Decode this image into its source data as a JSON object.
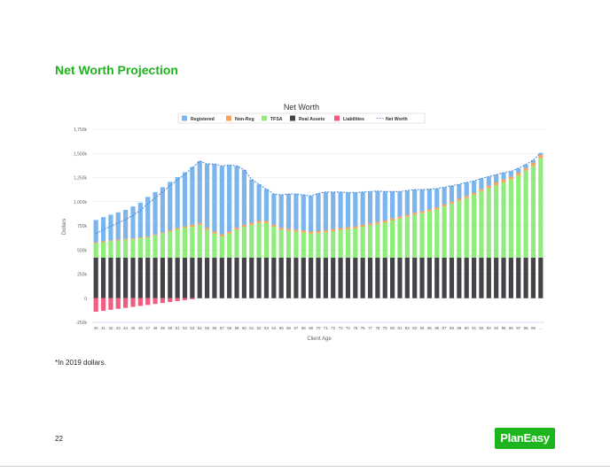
{
  "page": {
    "title": "Net Worth Projection",
    "footnote": "*In 2019 dollars.",
    "page_number": "22",
    "logo_text": "PlanEasy",
    "accent_color": "#1db51d"
  },
  "chart_data": {
    "type": "bar",
    "stacked": true,
    "title": "Net Worth",
    "xlabel": "Client Age",
    "ylabel": "Dollars",
    "ylim": [
      -250000,
      1750000
    ],
    "yticks": [
      -250000,
      0,
      250000,
      500000,
      750000,
      1000000,
      1250000,
      1500000,
      1750000
    ],
    "ytick_labels": [
      "-250k",
      "0",
      "250k",
      "500k",
      "750k",
      "1,000k",
      "1,250k",
      "1,500k",
      "1,750k"
    ],
    "grid": true,
    "legend_position": "top",
    "categories": [
      "40",
      "41",
      "42",
      "43",
      "44",
      "45",
      "46",
      "47",
      "48",
      "49",
      "50",
      "51",
      "52",
      "53",
      "54",
      "55",
      "56",
      "57",
      "58",
      "59",
      "60",
      "61",
      "62",
      "63",
      "64",
      "65",
      "66",
      "67",
      "68",
      "69",
      "70",
      "71",
      "72",
      "73",
      "74",
      "75",
      "76",
      "77",
      "78",
      "79",
      "80",
      "81",
      "82",
      "83",
      "84",
      "85",
      "86",
      "87",
      "88",
      "89",
      "90",
      "91",
      "92",
      "93",
      "94",
      "95",
      "96",
      "97",
      "98",
      "99",
      "..."
    ],
    "series": [
      {
        "name": "Registered",
        "color": "#7cb5ec",
        "stack": "positive",
        "values": [
          230000,
          250000,
          265000,
          285000,
          300000,
          330000,
          360000,
          410000,
          440000,
          470000,
          500000,
          530000,
          560000,
          600000,
          640000,
          660000,
          700000,
          710000,
          690000,
          640000,
          570000,
          450000,
          380000,
          330000,
          320000,
          340000,
          360000,
          370000,
          370000,
          370000,
          390000,
          395000,
          385000,
          375000,
          360000,
          350000,
          340000,
          330000,
          320000,
          300000,
          280000,
          260000,
          250000,
          240000,
          225000,
          210000,
          195000,
          180000,
          165000,
          150000,
          140000,
          125000,
          110000,
          95000,
          80000,
          70000,
          55000,
          45000,
          35000,
          25000,
          20000
        ]
      },
      {
        "name": "Non-Reg",
        "color": "#f7a35c",
        "stack": "positive",
        "values": [
          10000,
          10000,
          10000,
          10000,
          10000,
          10000,
          10000,
          10000,
          10000,
          10000,
          15000,
          15000,
          15000,
          20000,
          20000,
          20000,
          20000,
          20000,
          20000,
          20000,
          20000,
          20000,
          20000,
          20000,
          20000,
          20000,
          20000,
          20000,
          20000,
          20000,
          20000,
          20000,
          20000,
          20000,
          20000,
          20000,
          20000,
          20000,
          20000,
          20000,
          20000,
          20000,
          20000,
          20000,
          20000,
          20000,
          20000,
          20000,
          20000,
          20000,
          20000,
          20000,
          20000,
          25000,
          30000,
          30000,
          30000,
          30000,
          30000,
          35000,
          35000
        ]
      },
      {
        "name": "TFSA",
        "color": "#90ed7d",
        "stack": "positive",
        "values": [
          150000,
          160000,
          170000,
          175000,
          185000,
          190000,
          200000,
          210000,
          230000,
          250000,
          270000,
          290000,
          310000,
          320000,
          340000,
          290000,
          250000,
          220000,
          250000,
          290000,
          320000,
          340000,
          360000,
          360000,
          320000,
          290000,
          280000,
          270000,
          260000,
          250000,
          255000,
          265000,
          275000,
          285000,
          295000,
          305000,
          320000,
          335000,
          350000,
          365000,
          385000,
          405000,
          425000,
          445000,
          460000,
          480000,
          500000,
          530000,
          560000,
          590000,
          620000,
          650000,
          690000,
          720000,
          750000,
          780000,
          810000,
          850000,
          900000,
          950000,
          1030000
        ]
      },
      {
        "name": "Real Assets",
        "color": "#434348",
        "stack": "positive",
        "values": [
          420000,
          420000,
          420000,
          420000,
          420000,
          420000,
          420000,
          420000,
          420000,
          420000,
          420000,
          420000,
          420000,
          420000,
          420000,
          420000,
          420000,
          420000,
          420000,
          420000,
          420000,
          420000,
          420000,
          420000,
          420000,
          420000,
          420000,
          420000,
          420000,
          420000,
          420000,
          420000,
          420000,
          420000,
          420000,
          420000,
          420000,
          420000,
          420000,
          420000,
          420000,
          420000,
          420000,
          420000,
          420000,
          420000,
          420000,
          420000,
          420000,
          420000,
          420000,
          420000,
          420000,
          420000,
          420000,
          420000,
          420000,
          420000,
          420000,
          420000,
          420000
        ]
      },
      {
        "name": "Liabilities",
        "color": "#f15c80",
        "stack": "negative",
        "values": [
          -140000,
          -130000,
          -120000,
          -110000,
          -100000,
          -90000,
          -80000,
          -70000,
          -60000,
          -50000,
          -40000,
          -30000,
          -20000,
          -10000,
          0,
          0,
          0,
          0,
          0,
          0,
          0,
          0,
          0,
          0,
          0,
          0,
          0,
          0,
          0,
          0,
          0,
          0,
          0,
          0,
          0,
          0,
          0,
          0,
          0,
          0,
          0,
          0,
          0,
          0,
          0,
          0,
          0,
          0,
          0,
          0,
          0,
          0,
          0,
          0,
          0,
          0,
          0,
          0,
          0,
          0,
          0
        ]
      },
      {
        "name": "Net Worth",
        "color": "#7cb5ec",
        "type": "line",
        "dash": true,
        "values": [
          670000,
          710000,
          745000,
          780000,
          815000,
          860000,
          910000,
          980000,
          1040000,
          1100000,
          1165000,
          1225000,
          1285000,
          1350000,
          1420000,
          1390000,
          1390000,
          1370000,
          1380000,
          1370000,
          1330000,
          1230000,
          1180000,
          1130000,
          1080000,
          1070000,
          1080000,
          1080000,
          1070000,
          1060000,
          1085000,
          1100000,
          1100000,
          1100000,
          1095000,
          1095000,
          1100000,
          1105000,
          1110000,
          1105000,
          1105000,
          1105000,
          1115000,
          1125000,
          1125000,
          1130000,
          1135000,
          1150000,
          1165000,
          1180000,
          1200000,
          1215000,
          1240000,
          1260000,
          1280000,
          1300000,
          1315000,
          1345000,
          1385000,
          1430000,
          1505000
        ]
      }
    ]
  }
}
